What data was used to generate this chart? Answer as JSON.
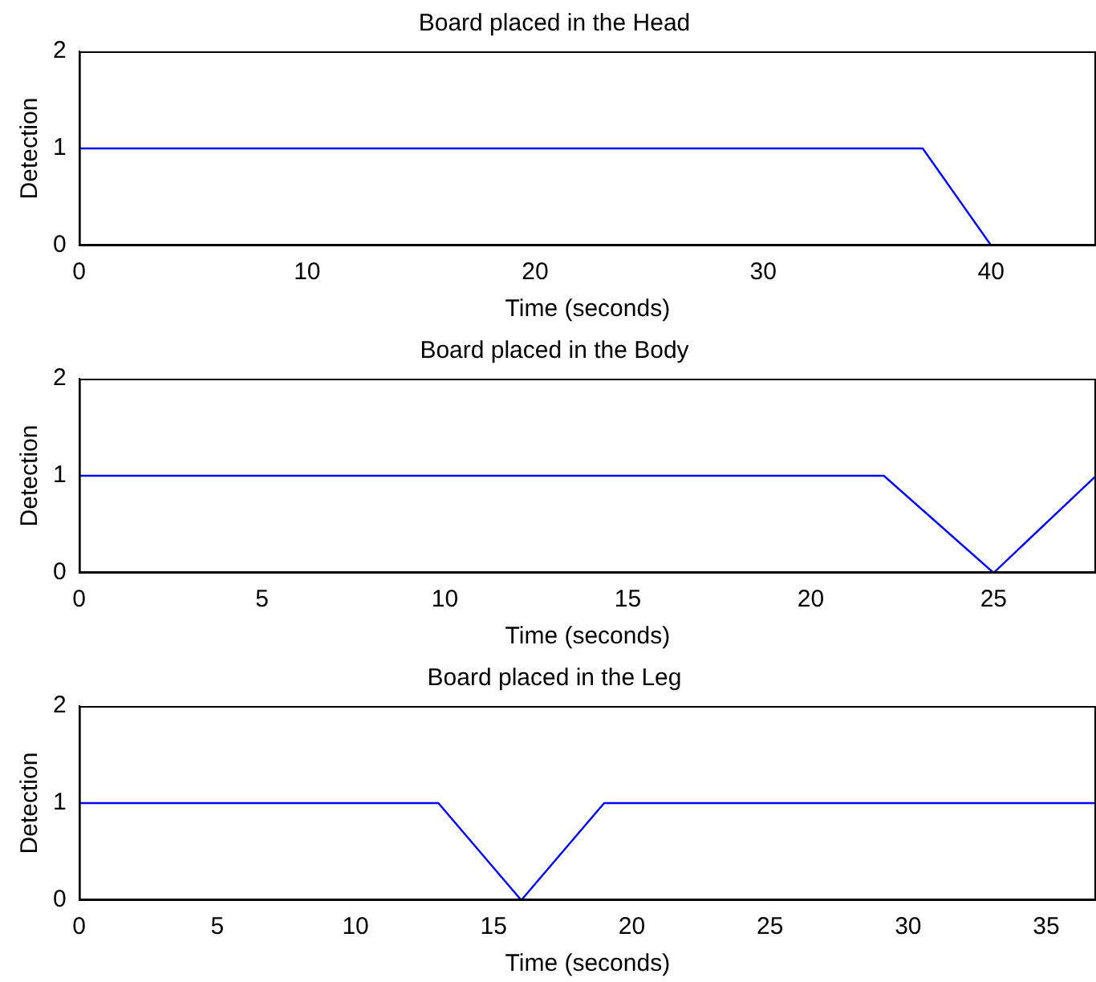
{
  "chart_data": [
    {
      "type": "line",
      "title": "Board placed in the Head",
      "xlabel": "Time (seconds)",
      "ylabel": "Detection",
      "x": [
        0,
        37,
        40
      ],
      "values": [
        1,
        1,
        0
      ],
      "color": "#0000ff",
      "xlim": [
        0,
        44.6
      ],
      "xticks": [
        0,
        10,
        20,
        30,
        40
      ],
      "ylim": [
        0,
        2
      ],
      "yticks": [
        0,
        1,
        2
      ]
    },
    {
      "type": "line",
      "title": "Board placed in the Body",
      "xlabel": "Time (seconds)",
      "ylabel": "Detection",
      "x": [
        0,
        22,
        25,
        27.8
      ],
      "values": [
        1,
        1,
        0,
        1
      ],
      "color": "#0000ff",
      "xlim": [
        0,
        27.8
      ],
      "xticks": [
        0,
        5,
        10,
        15,
        20,
        25
      ],
      "ylim": [
        0,
        2
      ],
      "yticks": [
        0,
        1,
        2
      ]
    },
    {
      "type": "line",
      "title": "Board placed in the Leg",
      "xlabel": "Time (seconds)",
      "ylabel": "Detection",
      "x": [
        0,
        13,
        16,
        19,
        36.8
      ],
      "values": [
        1,
        1,
        0,
        1,
        1
      ],
      "color": "#0000ff",
      "xlim": [
        0,
        36.8
      ],
      "xticks": [
        0,
        5,
        10,
        15,
        20,
        25,
        30,
        35
      ],
      "ylim": [
        0,
        2
      ],
      "yticks": [
        0,
        1,
        2
      ]
    }
  ]
}
